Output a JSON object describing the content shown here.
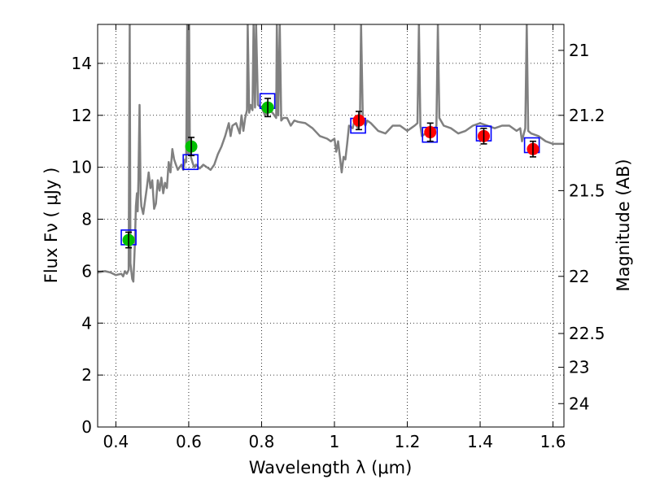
{
  "chart_data": {
    "type": "scatter",
    "title": "",
    "xlabel": "Wavelength  λ (μm)",
    "ylabel": "Flux  Fν  ( μJy )",
    "ylabel_right": "Magnitude (AB)",
    "xlim": [
      0.35,
      1.63
    ],
    "ylim": [
      0,
      15.5
    ],
    "grid": true,
    "x_ticks": [
      0.4,
      0.6,
      0.8,
      1.0,
      1.2,
      1.4,
      1.6
    ],
    "x_tick_labels": [
      "0.4",
      "0.6",
      "0.8",
      "1",
      "1.2",
      "1.4",
      "1.6"
    ],
    "y_ticks": [
      0,
      2,
      4,
      6,
      8,
      10,
      12,
      14
    ],
    "y_tick_labels": [
      "0",
      "2",
      "4",
      "6",
      "8",
      "10",
      "12",
      "14"
    ],
    "right_axis": {
      "ticks": [
        {
          "label": "21",
          "flux": 14.5
        },
        {
          "label": "21.2",
          "flux": 12.0
        },
        {
          "label": "21.5",
          "flux": 9.1
        },
        {
          "label": "22",
          "flux": 5.8
        },
        {
          "label": "22.5",
          "flux": 3.6
        },
        {
          "label": "23",
          "flux": 2.3
        },
        {
          "label": "24",
          "flux": 0.9
        }
      ]
    },
    "series": [
      {
        "kind": "model_spectrum",
        "color": "#808080",
        "points": [
          [
            0.35,
            5.95
          ],
          [
            0.37,
            6.0
          ],
          [
            0.385,
            5.95
          ],
          [
            0.4,
            5.85
          ],
          [
            0.415,
            5.9
          ],
          [
            0.42,
            5.8
          ],
          [
            0.425,
            6.0
          ],
          [
            0.43,
            5.9
          ],
          [
            0.435,
            6.05
          ],
          [
            0.438,
            15.5
          ],
          [
            0.44,
            6.3
          ],
          [
            0.445,
            5.7
          ],
          [
            0.448,
            5.6
          ],
          [
            0.452,
            7.0
          ],
          [
            0.455,
            8.5
          ],
          [
            0.458,
            9.0
          ],
          [
            0.46,
            8.3
          ],
          [
            0.462,
            9.5
          ],
          [
            0.465,
            12.4
          ],
          [
            0.468,
            9.0
          ],
          [
            0.47,
            8.5
          ],
          [
            0.475,
            8.2
          ],
          [
            0.48,
            8.7
          ],
          [
            0.485,
            9.2
          ],
          [
            0.49,
            9.8
          ],
          [
            0.495,
            9.2
          ],
          [
            0.5,
            9.5
          ],
          [
            0.505,
            8.4
          ],
          [
            0.51,
            8.6
          ],
          [
            0.515,
            9.5
          ],
          [
            0.52,
            9.1
          ],
          [
            0.525,
            9.6
          ],
          [
            0.53,
            9.0
          ],
          [
            0.535,
            9.4
          ],
          [
            0.54,
            9.2
          ],
          [
            0.545,
            10.2
          ],
          [
            0.55,
            9.8
          ],
          [
            0.555,
            10.7
          ],
          [
            0.56,
            10.3
          ],
          [
            0.565,
            10.1
          ],
          [
            0.57,
            9.9
          ],
          [
            0.575,
            10.0
          ],
          [
            0.58,
            10.1
          ],
          [
            0.585,
            9.9
          ],
          [
            0.59,
            10.3
          ],
          [
            0.593,
            10.2
          ],
          [
            0.596,
            15.5
          ],
          [
            0.599,
            10.5
          ],
          [
            0.601,
            15.5
          ],
          [
            0.603,
            10.8
          ],
          [
            0.606,
            10.4
          ],
          [
            0.61,
            10.2
          ],
          [
            0.615,
            10.0
          ],
          [
            0.62,
            10.1
          ],
          [
            0.63,
            9.95
          ],
          [
            0.64,
            10.1
          ],
          [
            0.65,
            10.0
          ],
          [
            0.66,
            9.9
          ],
          [
            0.67,
            10.1
          ],
          [
            0.68,
            10.5
          ],
          [
            0.69,
            10.8
          ],
          [
            0.7,
            11.2
          ],
          [
            0.71,
            11.7
          ],
          [
            0.715,
            11.2
          ],
          [
            0.72,
            11.6
          ],
          [
            0.73,
            11.7
          ],
          [
            0.74,
            11.3
          ],
          [
            0.745,
            12.0
          ],
          [
            0.75,
            11.4
          ],
          [
            0.755,
            11.9
          ],
          [
            0.76,
            12.2
          ],
          [
            0.762,
            15.5
          ],
          [
            0.766,
            12.1
          ],
          [
            0.77,
            12.4
          ],
          [
            0.775,
            12.2
          ],
          [
            0.778,
            15.5
          ],
          [
            0.782,
            12.3
          ],
          [
            0.785,
            15.5
          ],
          [
            0.79,
            12.4
          ],
          [
            0.8,
            12.3
          ],
          [
            0.81,
            12.0
          ],
          [
            0.82,
            12.2
          ],
          [
            0.83,
            12.1
          ],
          [
            0.84,
            11.9
          ],
          [
            0.842,
            15.5
          ],
          [
            0.846,
            12.0
          ],
          [
            0.85,
            15.5
          ],
          [
            0.854,
            11.8
          ],
          [
            0.86,
            11.9
          ],
          [
            0.87,
            11.9
          ],
          [
            0.88,
            11.6
          ],
          [
            0.89,
            11.8
          ],
          [
            0.9,
            11.75
          ],
          [
            0.92,
            11.7
          ],
          [
            0.94,
            11.5
          ],
          [
            0.96,
            11.2
          ],
          [
            0.98,
            11.1
          ],
          [
            0.99,
            11.0
          ],
          [
            1.0,
            11.1
          ],
          [
            1.005,
            10.6
          ],
          [
            1.01,
            11.0
          ],
          [
            1.015,
            10.4
          ],
          [
            1.02,
            9.8
          ],
          [
            1.025,
            10.4
          ],
          [
            1.03,
            10.3
          ],
          [
            1.035,
            10.9
          ],
          [
            1.04,
            11.6
          ],
          [
            1.05,
            11.5
          ],
          [
            1.055,
            11.8
          ],
          [
            1.06,
            11.6
          ],
          [
            1.065,
            11.5
          ],
          [
            1.07,
            11.7
          ],
          [
            1.073,
            15.5
          ],
          [
            1.078,
            11.8
          ],
          [
            1.085,
            11.6
          ],
          [
            1.09,
            11.8
          ],
          [
            1.1,
            11.7
          ],
          [
            1.12,
            11.4
          ],
          [
            1.14,
            11.3
          ],
          [
            1.16,
            11.6
          ],
          [
            1.18,
            11.6
          ],
          [
            1.2,
            11.4
          ],
          [
            1.21,
            11.5
          ],
          [
            1.22,
            11.6
          ],
          [
            1.228,
            11.7
          ],
          [
            1.232,
            15.5
          ],
          [
            1.236,
            11.6
          ],
          [
            1.24,
            11.2
          ],
          [
            1.25,
            11.3
          ],
          [
            1.26,
            11.2
          ],
          [
            1.27,
            11.2
          ],
          [
            1.28,
            11.6
          ],
          [
            1.284,
            15.5
          ],
          [
            1.288,
            11.9
          ],
          [
            1.3,
            11.6
          ],
          [
            1.32,
            11.5
          ],
          [
            1.34,
            11.3
          ],
          [
            1.36,
            11.4
          ],
          [
            1.38,
            11.6
          ],
          [
            1.4,
            11.7
          ],
          [
            1.42,
            11.6
          ],
          [
            1.44,
            11.5
          ],
          [
            1.46,
            11.6
          ],
          [
            1.48,
            11.6
          ],
          [
            1.5,
            11.4
          ],
          [
            1.51,
            11.5
          ],
          [
            1.515,
            11.0
          ],
          [
            1.52,
            11.3
          ],
          [
            1.524,
            11.5
          ],
          [
            1.528,
            15.5
          ],
          [
            1.532,
            11.4
          ],
          [
            1.54,
            11.3
          ],
          [
            1.56,
            11.2
          ],
          [
            1.58,
            11.0
          ],
          [
            1.6,
            10.9
          ],
          [
            1.63,
            10.9
          ]
        ]
      },
      {
        "kind": "model_photometry",
        "marker": "open square",
        "color": "#0000ff",
        "points": [
          [
            0.435,
            7.3
          ],
          [
            0.605,
            10.2
          ],
          [
            0.816,
            12.55
          ],
          [
            1.065,
            11.6
          ],
          [
            1.262,
            11.25
          ],
          [
            1.41,
            11.3
          ],
          [
            1.542,
            10.85
          ]
        ]
      },
      {
        "kind": "observed_optical",
        "marker": "filled circle",
        "color": "#00c000",
        "points": [
          [
            0.435,
            7.2
          ],
          [
            0.607,
            10.8
          ],
          [
            0.817,
            12.3
          ]
        ],
        "errors": [
          0.3,
          0.35,
          0.35
        ]
      },
      {
        "kind": "observed_nir",
        "marker": "filled circle",
        "color": "#ff0000",
        "points": [
          [
            1.067,
            11.8
          ],
          [
            1.263,
            11.35
          ],
          [
            1.41,
            11.2
          ],
          [
            1.545,
            10.7
          ]
        ],
        "errors": [
          0.35,
          0.35,
          0.3,
          0.3
        ]
      }
    ]
  }
}
